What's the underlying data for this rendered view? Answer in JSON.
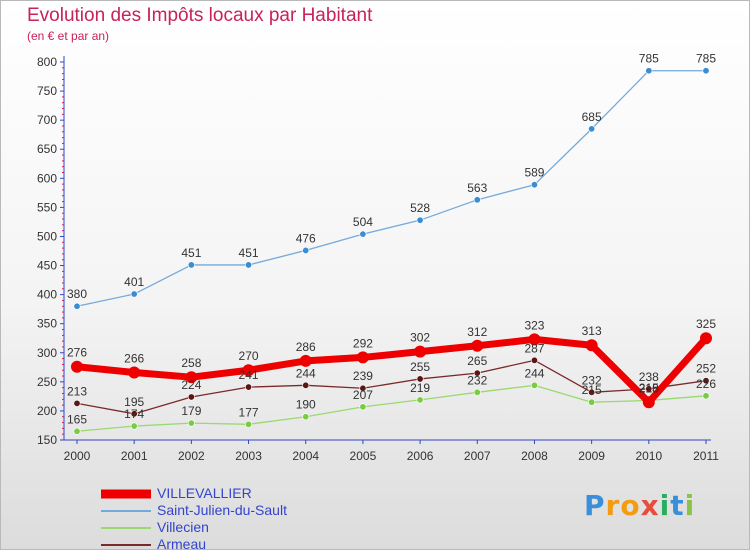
{
  "header": {
    "title": "Evolution des Impôts locaux par Habitant",
    "subtitle": "(en € et par an)"
  },
  "logo": {
    "letters": [
      "P",
      "r",
      "o",
      "x",
      "i",
      "t",
      "i"
    ],
    "colors": [
      "#3a8fd8",
      "#f39c12",
      "#f39c12",
      "#e74c3c",
      "#27ae60",
      "#3a8fd8",
      "#8bc34a"
    ]
  },
  "colors": {
    "axis": "#3344cc",
    "label": "#333333",
    "minor_tick": "#e0115f"
  },
  "chart_data": {
    "type": "line",
    "x": [
      "2000",
      "2001",
      "2002",
      "2003",
      "2004",
      "2005",
      "2006",
      "2007",
      "2008",
      "2009",
      "2010",
      "2011"
    ],
    "ylim": [
      150,
      800
    ],
    "yticks": [
      "150",
      "200",
      "250",
      "300",
      "350",
      "400",
      "450",
      "500",
      "550",
      "600",
      "650",
      "700",
      "750",
      "800"
    ],
    "grid": false,
    "legend_position": "bottom-left",
    "series": [
      {
        "name": "VILLEVALLIER",
        "color": "#ee0000",
        "point_color": "#ee0000",
        "stroke": "thick",
        "values": [
          276,
          266,
          258,
          270,
          286,
          292,
          302,
          312,
          323,
          313,
          215,
          325
        ],
        "labels": [
          "276",
          "266",
          "258",
          "270",
          "286",
          "292",
          "302",
          "312",
          "323",
          "313",
          "215",
          "325"
        ]
      },
      {
        "name": "Saint-Julien-du-Sault",
        "color": "#75a9db",
        "point_color": "#3a8dd0",
        "stroke": "thin",
        "values": [
          380,
          401,
          451,
          451,
          476,
          504,
          528,
          563,
          589,
          685,
          785,
          785
        ],
        "labels": [
          "380",
          "401",
          "451",
          "451",
          "476",
          "504",
          "528",
          "563",
          "589",
          "685",
          "785",
          "785"
        ]
      },
      {
        "name": "Villecien",
        "color": "#99d96f",
        "point_color": "#77cc44",
        "stroke": "thin",
        "values": [
          165,
          174,
          179,
          177,
          190,
          207,
          219,
          232,
          244,
          215,
          218,
          226
        ],
        "labels": [
          "165",
          "174",
          "179",
          "177",
          "190",
          "207",
          "219",
          "232",
          "244",
          "215",
          "218",
          "226"
        ]
      },
      {
        "name": "Armeau",
        "color": "#7b2a2a",
        "point_color": "#5a1515",
        "stroke": "thin",
        "values": [
          213,
          195,
          224,
          241,
          244,
          239,
          255,
          265,
          287,
          232,
          238,
          252
        ],
        "labels": [
          "213",
          "195",
          "224",
          "241",
          "244",
          "239",
          "255",
          "265",
          "287",
          "232",
          "238",
          "252"
        ]
      }
    ]
  }
}
